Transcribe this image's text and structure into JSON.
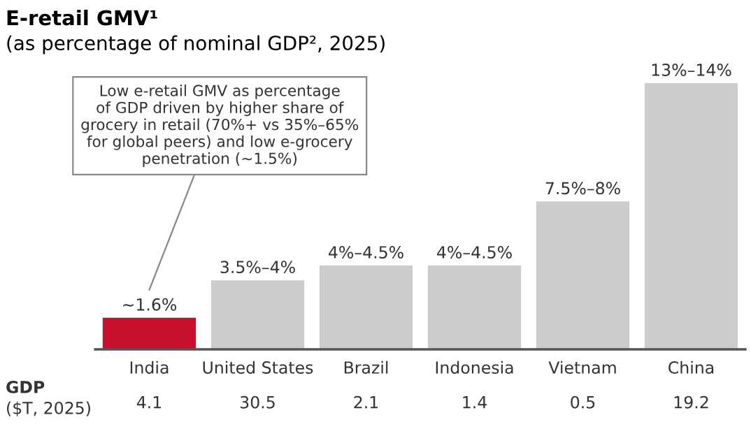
{
  "chart_data": {
    "type": "bar",
    "title": "E-retail GMV¹",
    "subtitle": "(as percentage of nominal GDP², 2025)",
    "categories": [
      "India",
      "United States",
      "Brazil",
      "Indonesia",
      "Vietnam",
      "China"
    ],
    "values": [
      1.6,
      3.5,
      4.25,
      4.25,
      7.5,
      13.5
    ],
    "colors": [
      "#c8102e",
      "#cccccc",
      "#cccccc",
      "#cccccc",
      "#cccccc",
      "#cccccc"
    ],
    "value_labels": [
      "~1.6%",
      "3.5%–4%",
      "4%–4.5%",
      "4%–4.5%",
      "7.5%–8%",
      "13%–14%"
    ],
    "annotations": [
      "Low e-retail GMV as percentage\nof GDP driven by higher share of\ngrocery in retail (70%+ vs 35%–65%\nfor global peers) and low e-grocery\npenetration (~1.5%)",
      "GDP",
      "($T, 2025)",
      "4.1",
      "30.5",
      "2.1",
      "1.4",
      "0.5",
      "19.2"
    ]
  }
}
